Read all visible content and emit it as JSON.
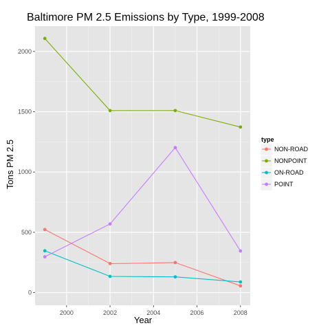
{
  "chart_data": {
    "type": "line",
    "title": "Baltimore PM 2.5 Emissions by Type, 1999-2008",
    "xlabel": "Year",
    "ylabel": "Tons PM 2.5",
    "x": [
      1999,
      2002,
      2005,
      2008
    ],
    "xticks": [
      2000,
      2002,
      2004,
      2006,
      2008
    ],
    "yticks": [
      0,
      500,
      1000,
      1500,
      2000
    ],
    "xlim": [
      1998.55,
      2008.45
    ],
    "ylim": [
      -105,
      2210
    ],
    "grid": true,
    "legend": {
      "title": "type",
      "position": "right"
    },
    "series": [
      {
        "name": "NON-ROAD",
        "color": "#F8766D",
        "values": [
          522.9,
          240.8,
          248.9,
          55.8
        ]
      },
      {
        "name": "NONPOINT",
        "color": "#7CAE00",
        "values": [
          2107.6,
          1509.5,
          1509.5,
          1373.2
        ]
      },
      {
        "name": "ON-ROAD",
        "color": "#00BFC4",
        "values": [
          346.8,
          134.3,
          130.4,
          88.3
        ]
      },
      {
        "name": "POINT",
        "color": "#C77CFF",
        "values": [
          296.8,
          569.3,
          1202.5,
          344.98
        ]
      }
    ]
  }
}
